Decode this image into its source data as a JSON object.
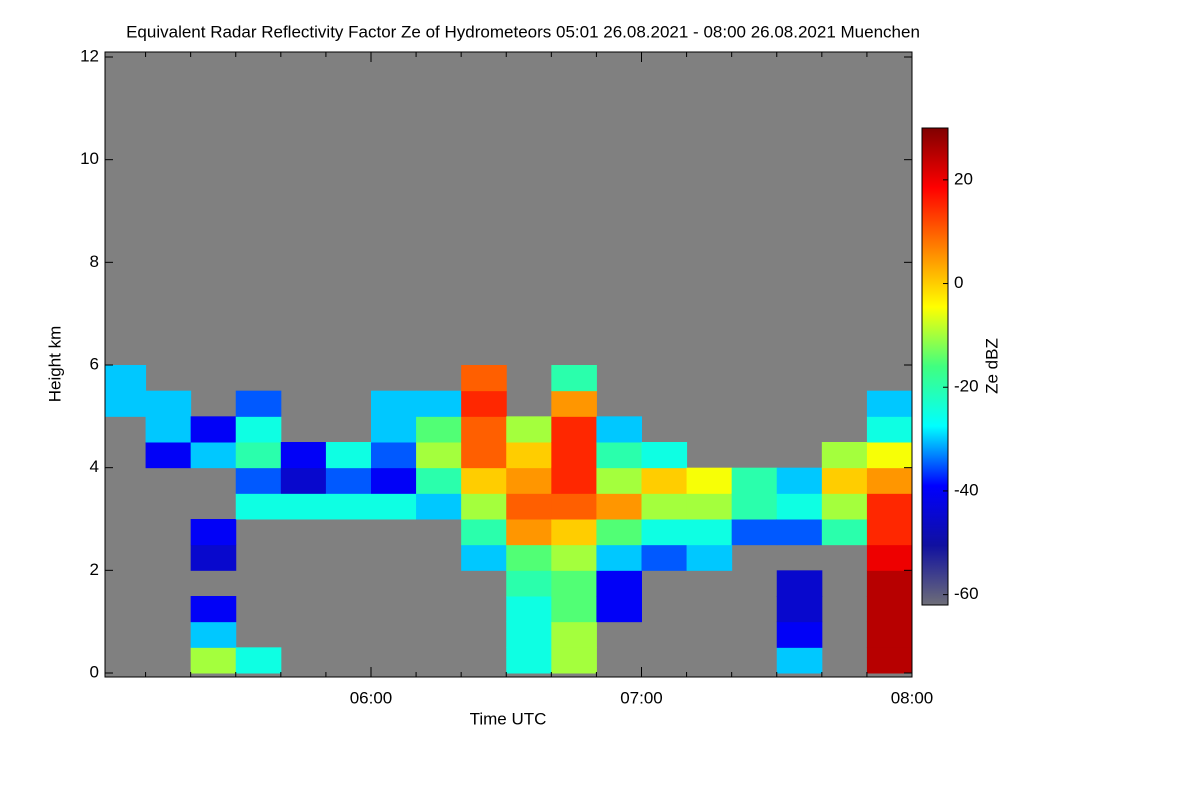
{
  "chart_data": {
    "type": "heatmap",
    "title": "Equivalent Radar Reflectivity Factor Ze of Hydrometeors   05:01 26.08.2021 - 08:00 26.08.2021 Muenchen",
    "x_label": "Time UTC",
    "y_label": "Height km",
    "colorbar_label": "Ze dBZ",
    "xlim": [
      "05:01",
      "08:00"
    ],
    "xticks": [
      "06:00",
      "07:00",
      "08:00"
    ],
    "xminorticks": [
      "05:10",
      "05:20",
      "05:30",
      "05:40",
      "05:50",
      "06:10",
      "06:20",
      "06:30",
      "06:40",
      "06:50",
      "07:10",
      "07:20",
      "07:30",
      "07:40",
      "07:50"
    ],
    "ylim": [
      0,
      12
    ],
    "yticks": [
      0,
      2,
      4,
      6,
      8,
      10,
      12
    ],
    "zlim": [
      -62,
      30
    ],
    "zticks": [
      -60,
      -40,
      -20,
      0,
      20
    ],
    "background": "#808080",
    "colors": [
      "#6e6e78",
      "#1010a0",
      "#0000ff",
      "#00ffff",
      "#40ff80",
      "#ffff00",
      "#ff8000",
      "#ff0000",
      "#800000"
    ],
    "xbins": [
      "05:01",
      "05:10",
      "05:20",
      "05:30",
      "05:40",
      "05:50",
      "06:00",
      "06:10",
      "06:20",
      "06:30",
      "06:40",
      "06:50",
      "07:00",
      "07:10",
      "07:20",
      "07:30",
      "07:40",
      "07:50",
      "08:00"
    ],
    "ybins": [
      0,
      0.5,
      1,
      1.5,
      2,
      2.5,
      3,
      3.5,
      4,
      4.5,
      5,
      5.5,
      6
    ],
    "values": [
      [
        null,
        null,
        null,
        null,
        null,
        null,
        null,
        null,
        null,
        null,
        -30,
        -30
      ],
      [
        null,
        null,
        null,
        null,
        null,
        null,
        null,
        null,
        -40,
        -30,
        -30,
        null
      ],
      [
        -10,
        -30,
        -40,
        null,
        -45,
        -40,
        null,
        null,
        -30,
        -40,
        null,
        null
      ],
      [
        -25,
        null,
        null,
        null,
        null,
        null,
        -25,
        -35,
        -20,
        -25,
        -35,
        null
      ],
      [
        null,
        null,
        null,
        null,
        null,
        null,
        -25,
        -45,
        -40,
        null,
        null,
        null
      ],
      [
        null,
        null,
        null,
        null,
        null,
        null,
        -25,
        -35,
        -25,
        null,
        null,
        null
      ],
      [
        null,
        null,
        null,
        null,
        null,
        null,
        -25,
        -40,
        -35,
        -30,
        -30,
        null
      ],
      [
        null,
        null,
        null,
        null,
        null,
        null,
        -30,
        -20,
        -10,
        -15,
        -30,
        null
      ],
      [
        null,
        null,
        null,
        null,
        -30,
        -20,
        -10,
        0,
        10,
        10,
        15,
        10
      ],
      [
        -25,
        -25,
        -25,
        -20,
        -15,
        5,
        10,
        5,
        0,
        -10,
        null,
        null
      ],
      [
        -10,
        -10,
        -15,
        -15,
        -10,
        0,
        10,
        15,
        15,
        15,
        5,
        -20
      ],
      [
        null,
        null,
        -40,
        -40,
        -30,
        -15,
        5,
        -10,
        -20,
        -30,
        null,
        null
      ],
      [
        null,
        null,
        null,
        null,
        -35,
        -25,
        -10,
        0,
        -25,
        null,
        null,
        null
      ],
      [
        null,
        null,
        null,
        null,
        -30,
        -25,
        -10,
        -5,
        null,
        null,
        null,
        null
      ],
      [
        null,
        null,
        null,
        null,
        null,
        -35,
        -20,
        -20,
        null,
        null,
        null,
        null
      ],
      [
        -30,
        -40,
        -45,
        -45,
        null,
        -35,
        -25,
        -30,
        null,
        null,
        null,
        null
      ],
      [
        null,
        null,
        null,
        null,
        null,
        -20,
        -10,
        0,
        -10,
        null,
        null,
        null
      ],
      [
        25,
        25,
        25,
        25,
        20,
        15,
        15,
        5,
        -5,
        -25,
        -30,
        null
      ]
    ]
  }
}
